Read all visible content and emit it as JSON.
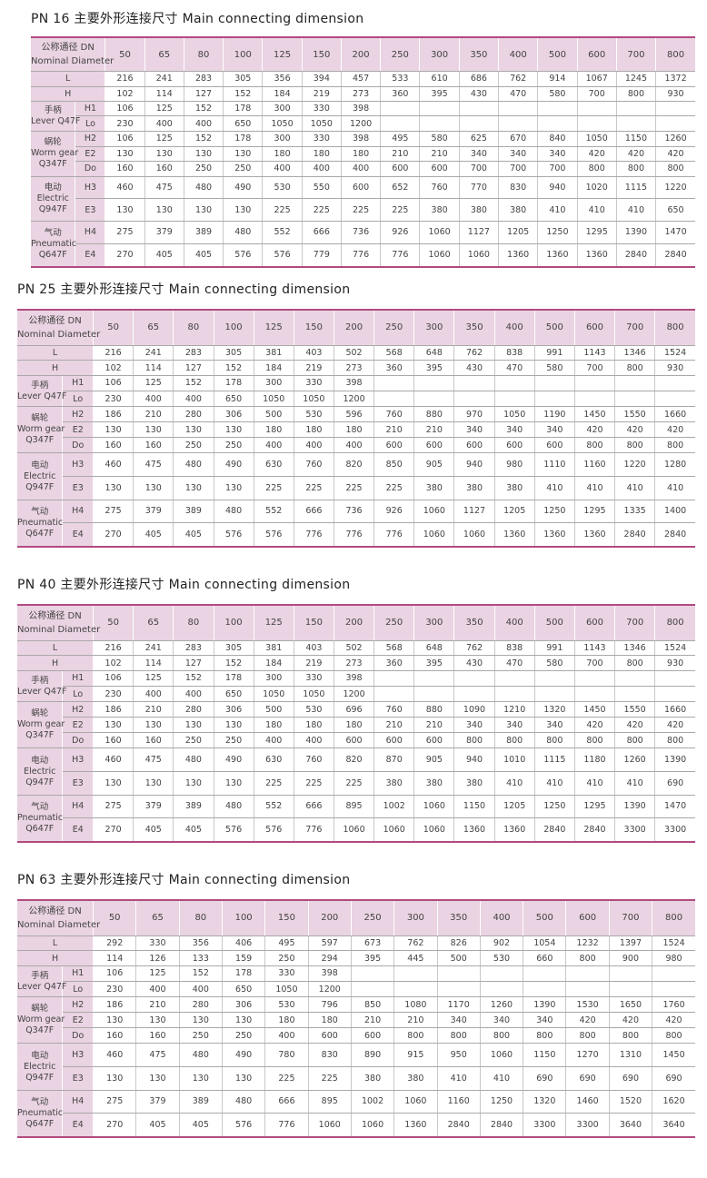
{
  "header_cn": "公称通径 DN",
  "header_en": "Nominal Diameter",
  "groups": [
    {
      "lines": [
        "手柄",
        "Lever Q47F"
      ],
      "rows": [
        "H1",
        "Lo"
      ]
    },
    {
      "lines": [
        "蜗轮",
        "Worm gear",
        "Q347F"
      ],
      "rows": [
        "H2",
        "E2",
        "Do"
      ]
    },
    {
      "lines": [
        "电动",
        "Electric",
        "Q947F"
      ],
      "rows": [
        "H3",
        "E3"
      ]
    },
    {
      "lines": [
        "气动",
        "Pneumatic",
        "Q647F"
      ],
      "rows": [
        "H4",
        "E4"
      ]
    }
  ],
  "colors": {
    "header_bg": "#ead3e2",
    "rule": "#b24a80"
  },
  "tables": [
    {
      "title": "PN 16 主要外形连接尺寸 Main connecting dimension",
      "dn": [
        "50",
        "65",
        "80",
        "100",
        "125",
        "150",
        "200",
        "250",
        "300",
        "350",
        "400",
        "500",
        "600",
        "700",
        "800"
      ],
      "rows": {
        "L": [
          "216",
          "241",
          "283",
          "305",
          "356",
          "394",
          "457",
          "533",
          "610",
          "686",
          "762",
          "914",
          "1067",
          "1245",
          "1372"
        ],
        "H": [
          "102",
          "114",
          "127",
          "152",
          "184",
          "219",
          "273",
          "360",
          "395",
          "430",
          "470",
          "580",
          "700",
          "800",
          "930"
        ],
        "H1": [
          "106",
          "125",
          "152",
          "178",
          "300",
          "330",
          "398"
        ],
        "Lo": [
          "230",
          "400",
          "400",
          "650",
          "1050",
          "1050",
          "1200"
        ],
        "H2": [
          "106",
          "125",
          "152",
          "178",
          "300",
          "330",
          "398",
          "495",
          "580",
          "625",
          "670",
          "840",
          "1050",
          "1150",
          "1260"
        ],
        "E2": [
          "130",
          "130",
          "130",
          "130",
          "180",
          "180",
          "180",
          "210",
          "210",
          "340",
          "340",
          "340",
          "420",
          "420",
          "420"
        ],
        "Do": [
          "160",
          "160",
          "250",
          "250",
          "400",
          "400",
          "400",
          "600",
          "600",
          "700",
          "700",
          "700",
          "800",
          "800",
          "800"
        ],
        "H3": [
          "460",
          "475",
          "480",
          "490",
          "530",
          "550",
          "600",
          "652",
          "760",
          "770",
          "830",
          "940",
          "1020",
          "1115",
          "1220"
        ],
        "E3": [
          "130",
          "130",
          "130",
          "130",
          "225",
          "225",
          "225",
          "225",
          "380",
          "380",
          "380",
          "410",
          "410",
          "410",
          "650"
        ],
        "H4": [
          "275",
          "379",
          "389",
          "480",
          "552",
          "666",
          "736",
          "926",
          "1060",
          "1127",
          "1205",
          "1250",
          "1295",
          "1390",
          "1470"
        ],
        "E4": [
          "270",
          "405",
          "405",
          "576",
          "576",
          "779",
          "776",
          "776",
          "1060",
          "1060",
          "1360",
          "1360",
          "1360",
          "2840",
          "2840"
        ]
      }
    },
    {
      "title": "PN 25 主要外形连接尺寸 Main connecting dimension",
      "dn": [
        "50",
        "65",
        "80",
        "100",
        "125",
        "150",
        "200",
        "250",
        "300",
        "350",
        "400",
        "500",
        "600",
        "700",
        "800"
      ],
      "rows": {
        "L": [
          "216",
          "241",
          "283",
          "305",
          "381",
          "403",
          "502",
          "568",
          "648",
          "762",
          "838",
          "991",
          "1143",
          "1346",
          "1524"
        ],
        "H": [
          "102",
          "114",
          "127",
          "152",
          "184",
          "219",
          "273",
          "360",
          "395",
          "430",
          "470",
          "580",
          "700",
          "800",
          "930"
        ],
        "H1": [
          "106",
          "125",
          "152",
          "178",
          "300",
          "330",
          "398"
        ],
        "Lo": [
          "230",
          "400",
          "400",
          "650",
          "1050",
          "1050",
          "1200"
        ],
        "H2": [
          "186",
          "210",
          "280",
          "306",
          "500",
          "530",
          "596",
          "760",
          "880",
          "970",
          "1050",
          "1190",
          "1450",
          "1550",
          "1660"
        ],
        "E2": [
          "130",
          "130",
          "130",
          "130",
          "180",
          "180",
          "180",
          "210",
          "210",
          "340",
          "340",
          "340",
          "420",
          "420",
          "420"
        ],
        "Do": [
          "160",
          "160",
          "250",
          "250",
          "400",
          "400",
          "400",
          "600",
          "600",
          "600",
          "600",
          "600",
          "800",
          "800",
          "800"
        ],
        "H3": [
          "460",
          "475",
          "480",
          "490",
          "630",
          "760",
          "820",
          "850",
          "905",
          "940",
          "980",
          "1110",
          "1160",
          "1220",
          "1280"
        ],
        "E3": [
          "130",
          "130",
          "130",
          "130",
          "225",
          "225",
          "225",
          "225",
          "380",
          "380",
          "380",
          "410",
          "410",
          "410",
          "410"
        ],
        "H4": [
          "275",
          "379",
          "389",
          "480",
          "552",
          "666",
          "736",
          "926",
          "1060",
          "1127",
          "1205",
          "1250",
          "1295",
          "1335",
          "1400"
        ],
        "E4": [
          "270",
          "405",
          "405",
          "576",
          "576",
          "776",
          "776",
          "776",
          "1060",
          "1060",
          "1360",
          "1360",
          "1360",
          "2840",
          "2840"
        ]
      }
    },
    {
      "title": "PN 40 主要外形连接尺寸 Main connecting dimension",
      "dn": [
        "50",
        "65",
        "80",
        "100",
        "125",
        "150",
        "200",
        "250",
        "300",
        "350",
        "400",
        "500",
        "600",
        "700",
        "800"
      ],
      "rows": {
        "L": [
          "216",
          "241",
          "283",
          "305",
          "381",
          "403",
          "502",
          "568",
          "648",
          "762",
          "838",
          "991",
          "1143",
          "1346",
          "1524"
        ],
        "H": [
          "102",
          "114",
          "127",
          "152",
          "184",
          "219",
          "273",
          "360",
          "395",
          "430",
          "470",
          "580",
          "700",
          "800",
          "930"
        ],
        "H1": [
          "106",
          "125",
          "152",
          "178",
          "300",
          "330",
          "398"
        ],
        "Lo": [
          "230",
          "400",
          "400",
          "650",
          "1050",
          "1050",
          "1200"
        ],
        "H2": [
          "186",
          "210",
          "280",
          "306",
          "500",
          "530",
          "696",
          "760",
          "880",
          "1090",
          "1210",
          "1320",
          "1450",
          "1550",
          "1660"
        ],
        "E2": [
          "130",
          "130",
          "130",
          "130",
          "180",
          "180",
          "180",
          "210",
          "210",
          "340",
          "340",
          "340",
          "420",
          "420",
          "420"
        ],
        "Do": [
          "160",
          "160",
          "250",
          "250",
          "400",
          "400",
          "600",
          "600",
          "600",
          "800",
          "800",
          "800",
          "800",
          "800",
          "800"
        ],
        "H3": [
          "460",
          "475",
          "480",
          "490",
          "630",
          "760",
          "820",
          "870",
          "905",
          "940",
          "1010",
          "1115",
          "1180",
          "1260",
          "1390"
        ],
        "E3": [
          "130",
          "130",
          "130",
          "130",
          "225",
          "225",
          "225",
          "380",
          "380",
          "380",
          "410",
          "410",
          "410",
          "410",
          "690"
        ],
        "H4": [
          "275",
          "379",
          "389",
          "480",
          "552",
          "666",
          "895",
          "1002",
          "1060",
          "1150",
          "1205",
          "1250",
          "1295",
          "1390",
          "1470"
        ],
        "E4": [
          "270",
          "405",
          "405",
          "576",
          "576",
          "776",
          "1060",
          "1060",
          "1060",
          "1360",
          "1360",
          "2840",
          "2840",
          "3300",
          "3300"
        ]
      }
    },
    {
      "title": "PN 63 主要外形连接尺寸 Main connecting dimension",
      "dn": [
        "50",
        "65",
        "80",
        "100",
        "150",
        "200",
        "250",
        "300",
        "350",
        "400",
        "500",
        "600",
        "700",
        "800"
      ],
      "rows": {
        "L": [
          "292",
          "330",
          "356",
          "406",
          "495",
          "597",
          "673",
          "762",
          "826",
          "902",
          "1054",
          "1232",
          "1397",
          "1524"
        ],
        "H": [
          "114",
          "126",
          "133",
          "159",
          "250",
          "294",
          "395",
          "445",
          "500",
          "530",
          "660",
          "800",
          "900",
          "980"
        ],
        "H1": [
          "106",
          "125",
          "152",
          "178",
          "330",
          "398"
        ],
        "Lo": [
          "230",
          "400",
          "400",
          "650",
          "1050",
          "1200"
        ],
        "H2": [
          "186",
          "210",
          "280",
          "306",
          "530",
          "796",
          "850",
          "1080",
          "1170",
          "1260",
          "1390",
          "1530",
          "1650",
          "1760"
        ],
        "E2": [
          "130",
          "130",
          "130",
          "130",
          "180",
          "180",
          "210",
          "210",
          "340",
          "340",
          "340",
          "420",
          "420",
          "420"
        ],
        "Do": [
          "160",
          "160",
          "250",
          "250",
          "400",
          "600",
          "600",
          "800",
          "800",
          "800",
          "800",
          "800",
          "800",
          "800"
        ],
        "H3": [
          "460",
          "475",
          "480",
          "490",
          "780",
          "830",
          "890",
          "915",
          "950",
          "1060",
          "1150",
          "1270",
          "1310",
          "1450"
        ],
        "E3": [
          "130",
          "130",
          "130",
          "130",
          "225",
          "225",
          "380",
          "380",
          "410",
          "410",
          "690",
          "690",
          "690",
          "690"
        ],
        "H4": [
          "275",
          "379",
          "389",
          "480",
          "666",
          "895",
          "1002",
          "1060",
          "1160",
          "1250",
          "1320",
          "1460",
          "1520",
          "1620"
        ],
        "E4": [
          "270",
          "405",
          "405",
          "576",
          "776",
          "1060",
          "1060",
          "1360",
          "2840",
          "2840",
          "3300",
          "3300",
          "3640",
          "3640"
        ]
      }
    }
  ]
}
